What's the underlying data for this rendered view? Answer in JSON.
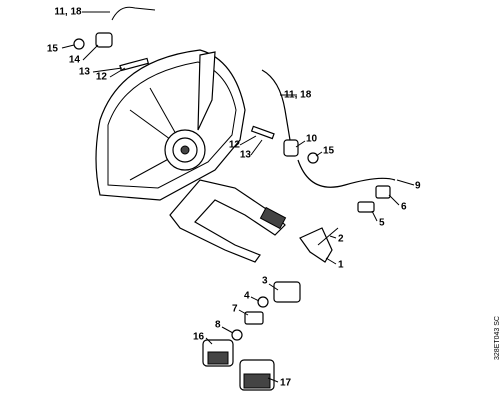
{
  "callouts": [
    "11, 18",
    "15",
    "14",
    "13",
    "12",
    "11, 18",
    "10",
    "12",
    "13",
    "15",
    "9",
    "6",
    "5",
    "2",
    "1",
    "3",
    "4",
    "7",
    "8",
    "16",
    "17"
  ],
  "drawing_code": "328ET043 SC"
}
